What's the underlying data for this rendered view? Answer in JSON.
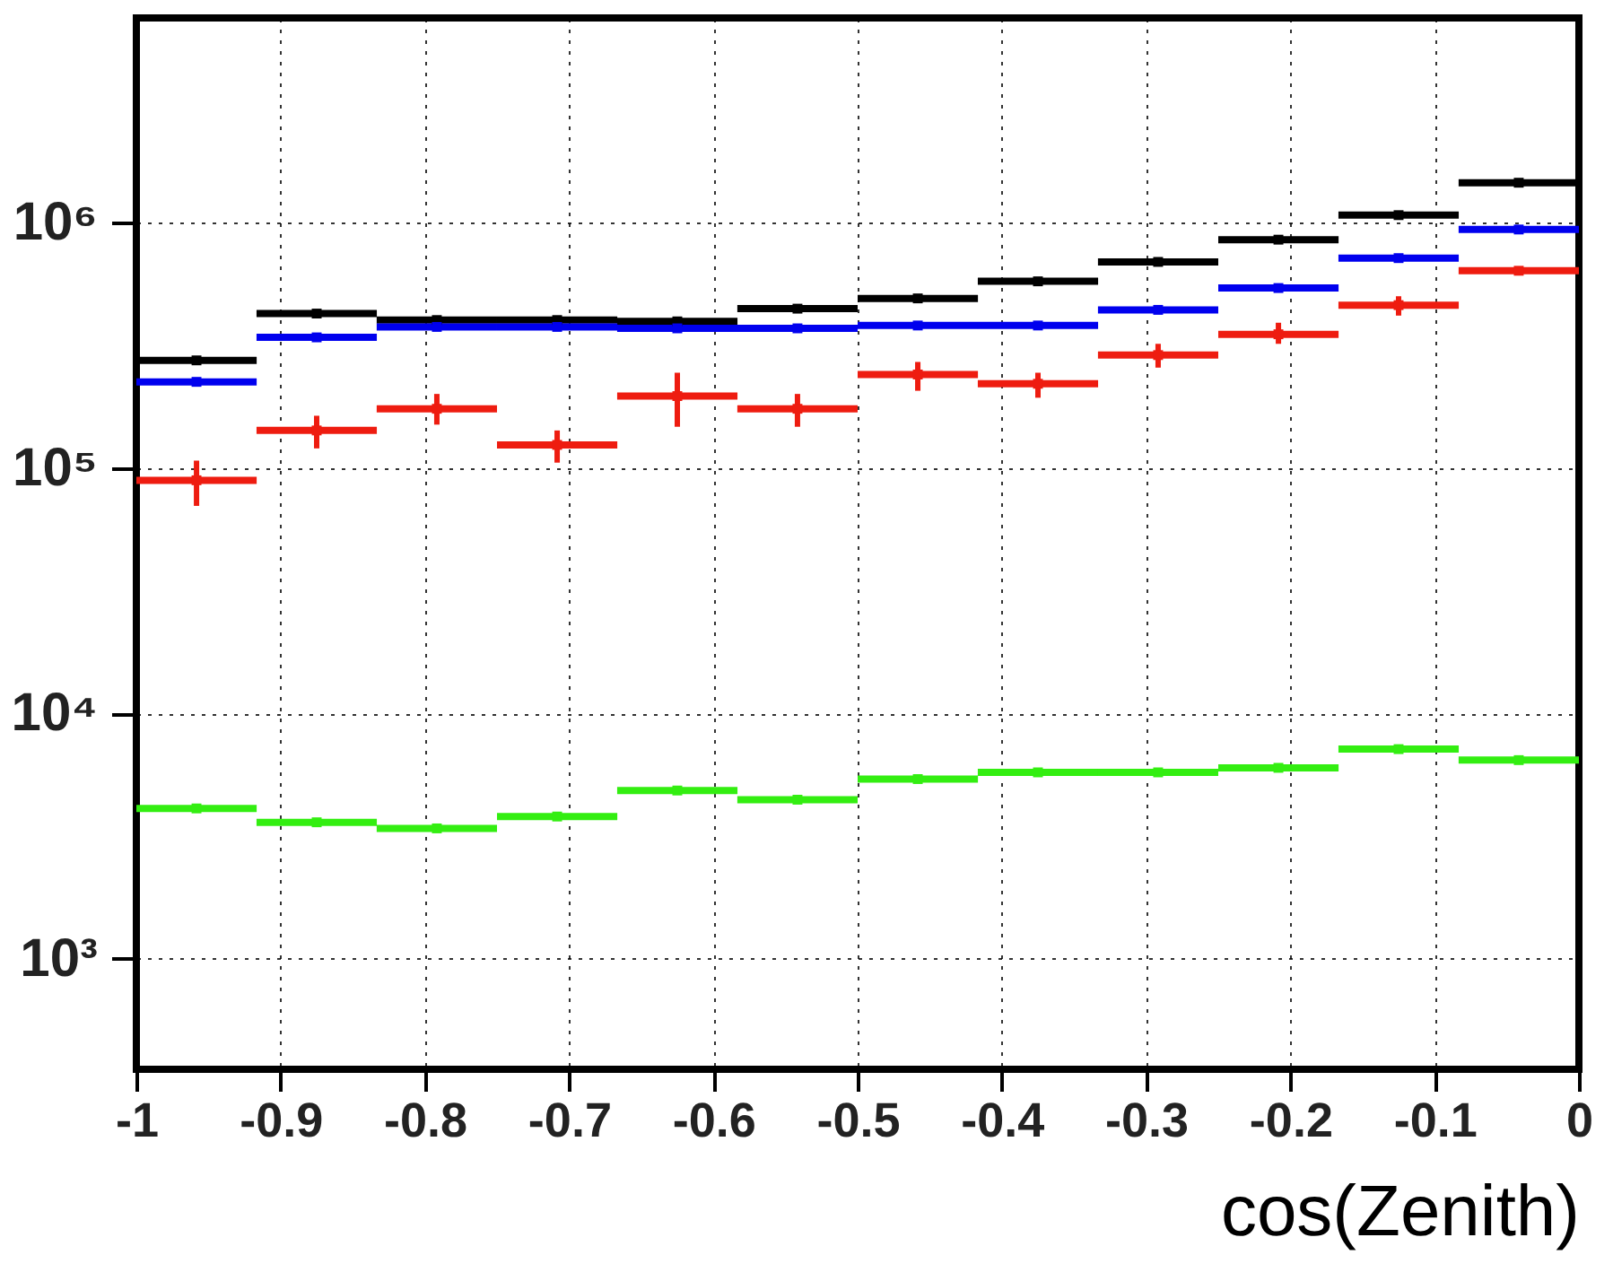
{
  "chart_data": {
    "type": "scatter",
    "xlabel": "cos(Zenith)",
    "log": "y",
    "grid": true,
    "marker": "square",
    "legend": false,
    "x": [
      -0.9583,
      -0.875,
      -0.7917,
      -0.7083,
      -0.625,
      -0.5417,
      -0.4583,
      -0.375,
      -0.2917,
      -0.2083,
      -0.125,
      -0.0417
    ],
    "xlim": [
      -1,
      0
    ],
    "ylim": [
      355,
      6800000
    ],
    "xticks": [
      {
        "value": -1,
        "label": "-1"
      },
      {
        "value": -0.9,
        "label": "-0.9"
      },
      {
        "value": -0.8,
        "label": "-0.8"
      },
      {
        "value": -0.7,
        "label": "-0.7"
      },
      {
        "value": -0.6,
        "label": "-0.6"
      },
      {
        "value": -0.5,
        "label": "-0.5"
      },
      {
        "value": -0.4,
        "label": "-0.4"
      },
      {
        "value": -0.3,
        "label": "-0.3"
      },
      {
        "value": -0.2,
        "label": "-0.2"
      },
      {
        "value": -0.1,
        "label": "-0.1"
      },
      {
        "value": 0,
        "label": "0"
      }
    ],
    "yticks": [
      {
        "value": 1000,
        "label": "10³"
      },
      {
        "value": 10000,
        "label": "10⁴"
      },
      {
        "value": 100000,
        "label": "10⁵"
      },
      {
        "value": 1000000,
        "label": "10⁶"
      }
    ],
    "series": [
      {
        "color": "#000000",
        "values": [
          274000,
          425000,
          400000,
          400000,
          395000,
          445000,
          490000,
          575000,
          690000,
          850000,
          1070000,
          1450000
        ],
        "xerrors": [
          0.0417,
          0.0417,
          0.0417,
          0.0417,
          0.0417,
          0.0417,
          0.0417,
          0.0417,
          0.0417,
          0.0417,
          0.0417,
          0.0417
        ]
      },
      {
        "color": "#0000ee",
        "values": [
          224000,
          340000,
          375000,
          375000,
          370000,
          370000,
          380000,
          380000,
          440000,
          540000,
          715000,
          935000
        ],
        "xerrors": [
          0.0417,
          0.0417,
          0.0417,
          0.0417,
          0.0417,
          0.0417,
          0.0417,
          0.0417,
          0.0417,
          0.0417,
          0.0417,
          0.0417
        ]
      },
      {
        "color": "#ee1c10",
        "values": [
          89000,
          142000,
          174000,
          124000,
          196000,
          174000,
          240000,
          220000,
          288000,
          350000,
          460000,
          635000
        ],
        "xerrors": [
          0.0417,
          0.0417,
          0.0417,
          0.0417,
          0.0417,
          0.0417,
          0.0417,
          0.0417,
          0.0417,
          0.0417,
          0.0417,
          0.0417
        ],
        "errors": [
          [
            70000,
            107000
          ],
          [
            120000,
            163000
          ],
          [
            150000,
            200000
          ],
          [
            105000,
            142000
          ],
          [
            147000,
            244000
          ],
          [
            147000,
            200000
          ],
          [
            206000,
            270000
          ],
          [
            193000,
            244000
          ],
          [
            256000,
            320000
          ],
          [
            320000,
            390000
          ],
          [
            417000,
            500000
          ],
          null
        ]
      },
      {
        "color": "#33ee11",
        "values": [
          4100,
          3600,
          3400,
          3800,
          4850,
          4450,
          5400,
          5750,
          5750,
          6000,
          7150,
          6450
        ],
        "xerrors": [
          0.0417,
          0.0417,
          0.0417,
          0.0417,
          0.0417,
          0.0417,
          0.0417,
          0.0417,
          0.0417,
          0.0417,
          0.0417,
          0.0417
        ]
      }
    ]
  }
}
